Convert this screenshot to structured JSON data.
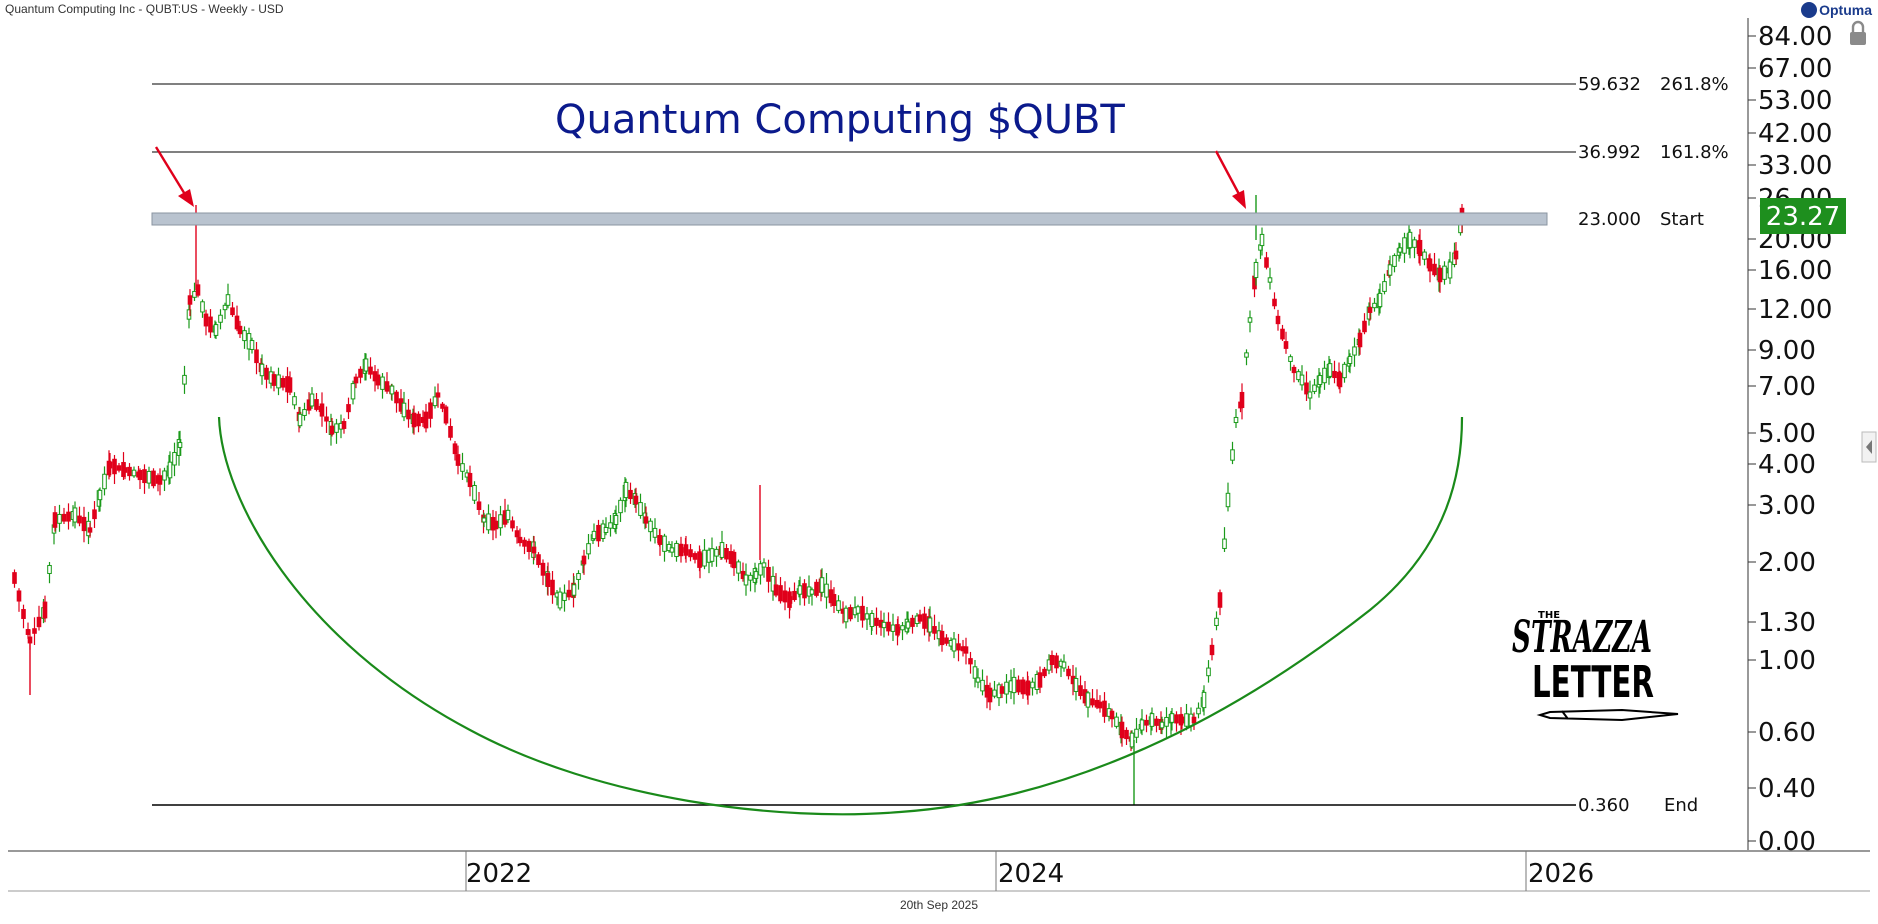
{
  "header": {
    "title": "Quantum Computing Inc - QUBT:US - Weekly - USD"
  },
  "brand": {
    "name": "Optuma"
  },
  "footer": {
    "date": "20th Sep 2025"
  },
  "chart_data": {
    "type": "candlestick",
    "title": "Quantum Computing $QUBT",
    "scale": "log",
    "x_ticks": [
      "2022",
      "2024",
      "2026"
    ],
    "y_ticks": [
      "84.00",
      "67.00",
      "53.00",
      "42.00",
      "33.00",
      "26.00",
      "20.00",
      "16.00",
      "12.00",
      "9.00",
      "7.00",
      "5.00",
      "4.00",
      "3.00",
      "2.00",
      "1.30",
      "1.00",
      "0.60",
      "0.40",
      "0.00"
    ],
    "last_price": "23.27",
    "fib_levels": [
      {
        "value": "59.632",
        "label": "261.8%"
      },
      {
        "value": "36.992",
        "label": "161.8%"
      },
      {
        "value": "23.000",
        "label": "Start"
      },
      {
        "value": "0.360",
        "label": "End"
      }
    ],
    "annotations": [
      "rounding bottom (cup) arc",
      "red arrows at two tops near 23.00"
    ],
    "watermark": [
      "THE",
      "STRAZZA",
      "LETTER"
    ],
    "colors": {
      "up": "#1a9a1a",
      "down": "#e0001b",
      "title": "#0b1a8c",
      "arc": "#1a8a1a",
      "price_box": "#1e8f1e",
      "arrow": "#e0001b"
    },
    "grid": false
  }
}
